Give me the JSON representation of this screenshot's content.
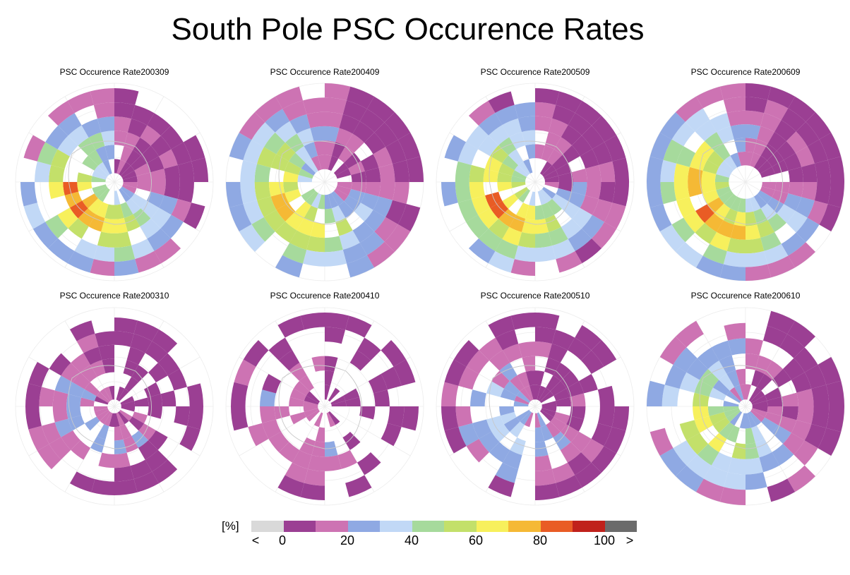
{
  "title": "South Pole PSC Occurence Rates",
  "chart_data": {
    "type": "heatmap",
    "projection": "south polar stereographic",
    "colorbar": {
      "unit_label": "[%]",
      "bins": [
        {
          "label": "<",
          "color": "#d9d9d9"
        },
        {
          "range": [
            0,
            10
          ],
          "color": "#9b3f93"
        },
        {
          "range": [
            10,
            20
          ],
          "color": "#cd73b3"
        },
        {
          "range": [
            20,
            30
          ],
          "color": "#8fa9e3"
        },
        {
          "range": [
            30,
            40
          ],
          "color": "#c1d8f6"
        },
        {
          "range": [
            40,
            50
          ],
          "color": "#a6da9c"
        },
        {
          "range": [
            50,
            60
          ],
          "color": "#c3e06a"
        },
        {
          "range": [
            60,
            70
          ],
          "color": "#f7f05c"
        },
        {
          "range": [
            70,
            80
          ],
          "color": "#f5b935"
        },
        {
          "range": [
            80,
            90
          ],
          "color": "#e95c25"
        },
        {
          "range": [
            90,
            100
          ],
          "color": "#c0211b"
        },
        {
          "label": ">",
          "color": "#6b6b6b"
        }
      ],
      "tick_labels": [
        "<",
        "0",
        "20",
        "40",
        "60",
        "80",
        "100",
        ">"
      ]
    },
    "panels": [
      {
        "title": "PSC Occurence Rate200309",
        "max_rate": 85,
        "coverage": 0.8,
        "outer_extent": 0.95,
        "hole": 0.09,
        "seed": 11
      },
      {
        "title": "PSC Occurence Rate200409",
        "max_rate": 78,
        "coverage": 0.85,
        "outer_extent": 1.0,
        "hole": 0.13,
        "seed": 23
      },
      {
        "title": "PSC Occurence Rate200509",
        "max_rate": 85,
        "coverage": 0.85,
        "outer_extent": 0.95,
        "hole": 0.1,
        "seed": 37
      },
      {
        "title": "PSC Occurence Rate200609",
        "max_rate": 85,
        "coverage": 0.9,
        "outer_extent": 1.0,
        "hole": 0.17,
        "seed": 41
      },
      {
        "title": "PSC Occurence Rate200310",
        "max_rate": 28,
        "coverage": 0.65,
        "outer_extent": 0.9,
        "hole": 0.07,
        "seed": 53
      },
      {
        "title": "PSC Occurence Rate200410",
        "max_rate": 25,
        "coverage": 0.5,
        "outer_extent": 0.95,
        "hole": 0.07,
        "seed": 67
      },
      {
        "title": "PSC Occurence Rate200510",
        "max_rate": 38,
        "coverage": 0.65,
        "outer_extent": 0.95,
        "hole": 0.07,
        "seed": 71
      },
      {
        "title": "PSC Occurence Rate200610",
        "max_rate": 62,
        "coverage": 0.8,
        "outer_extent": 1.0,
        "hole": 0.07,
        "seed": 89
      }
    ]
  }
}
